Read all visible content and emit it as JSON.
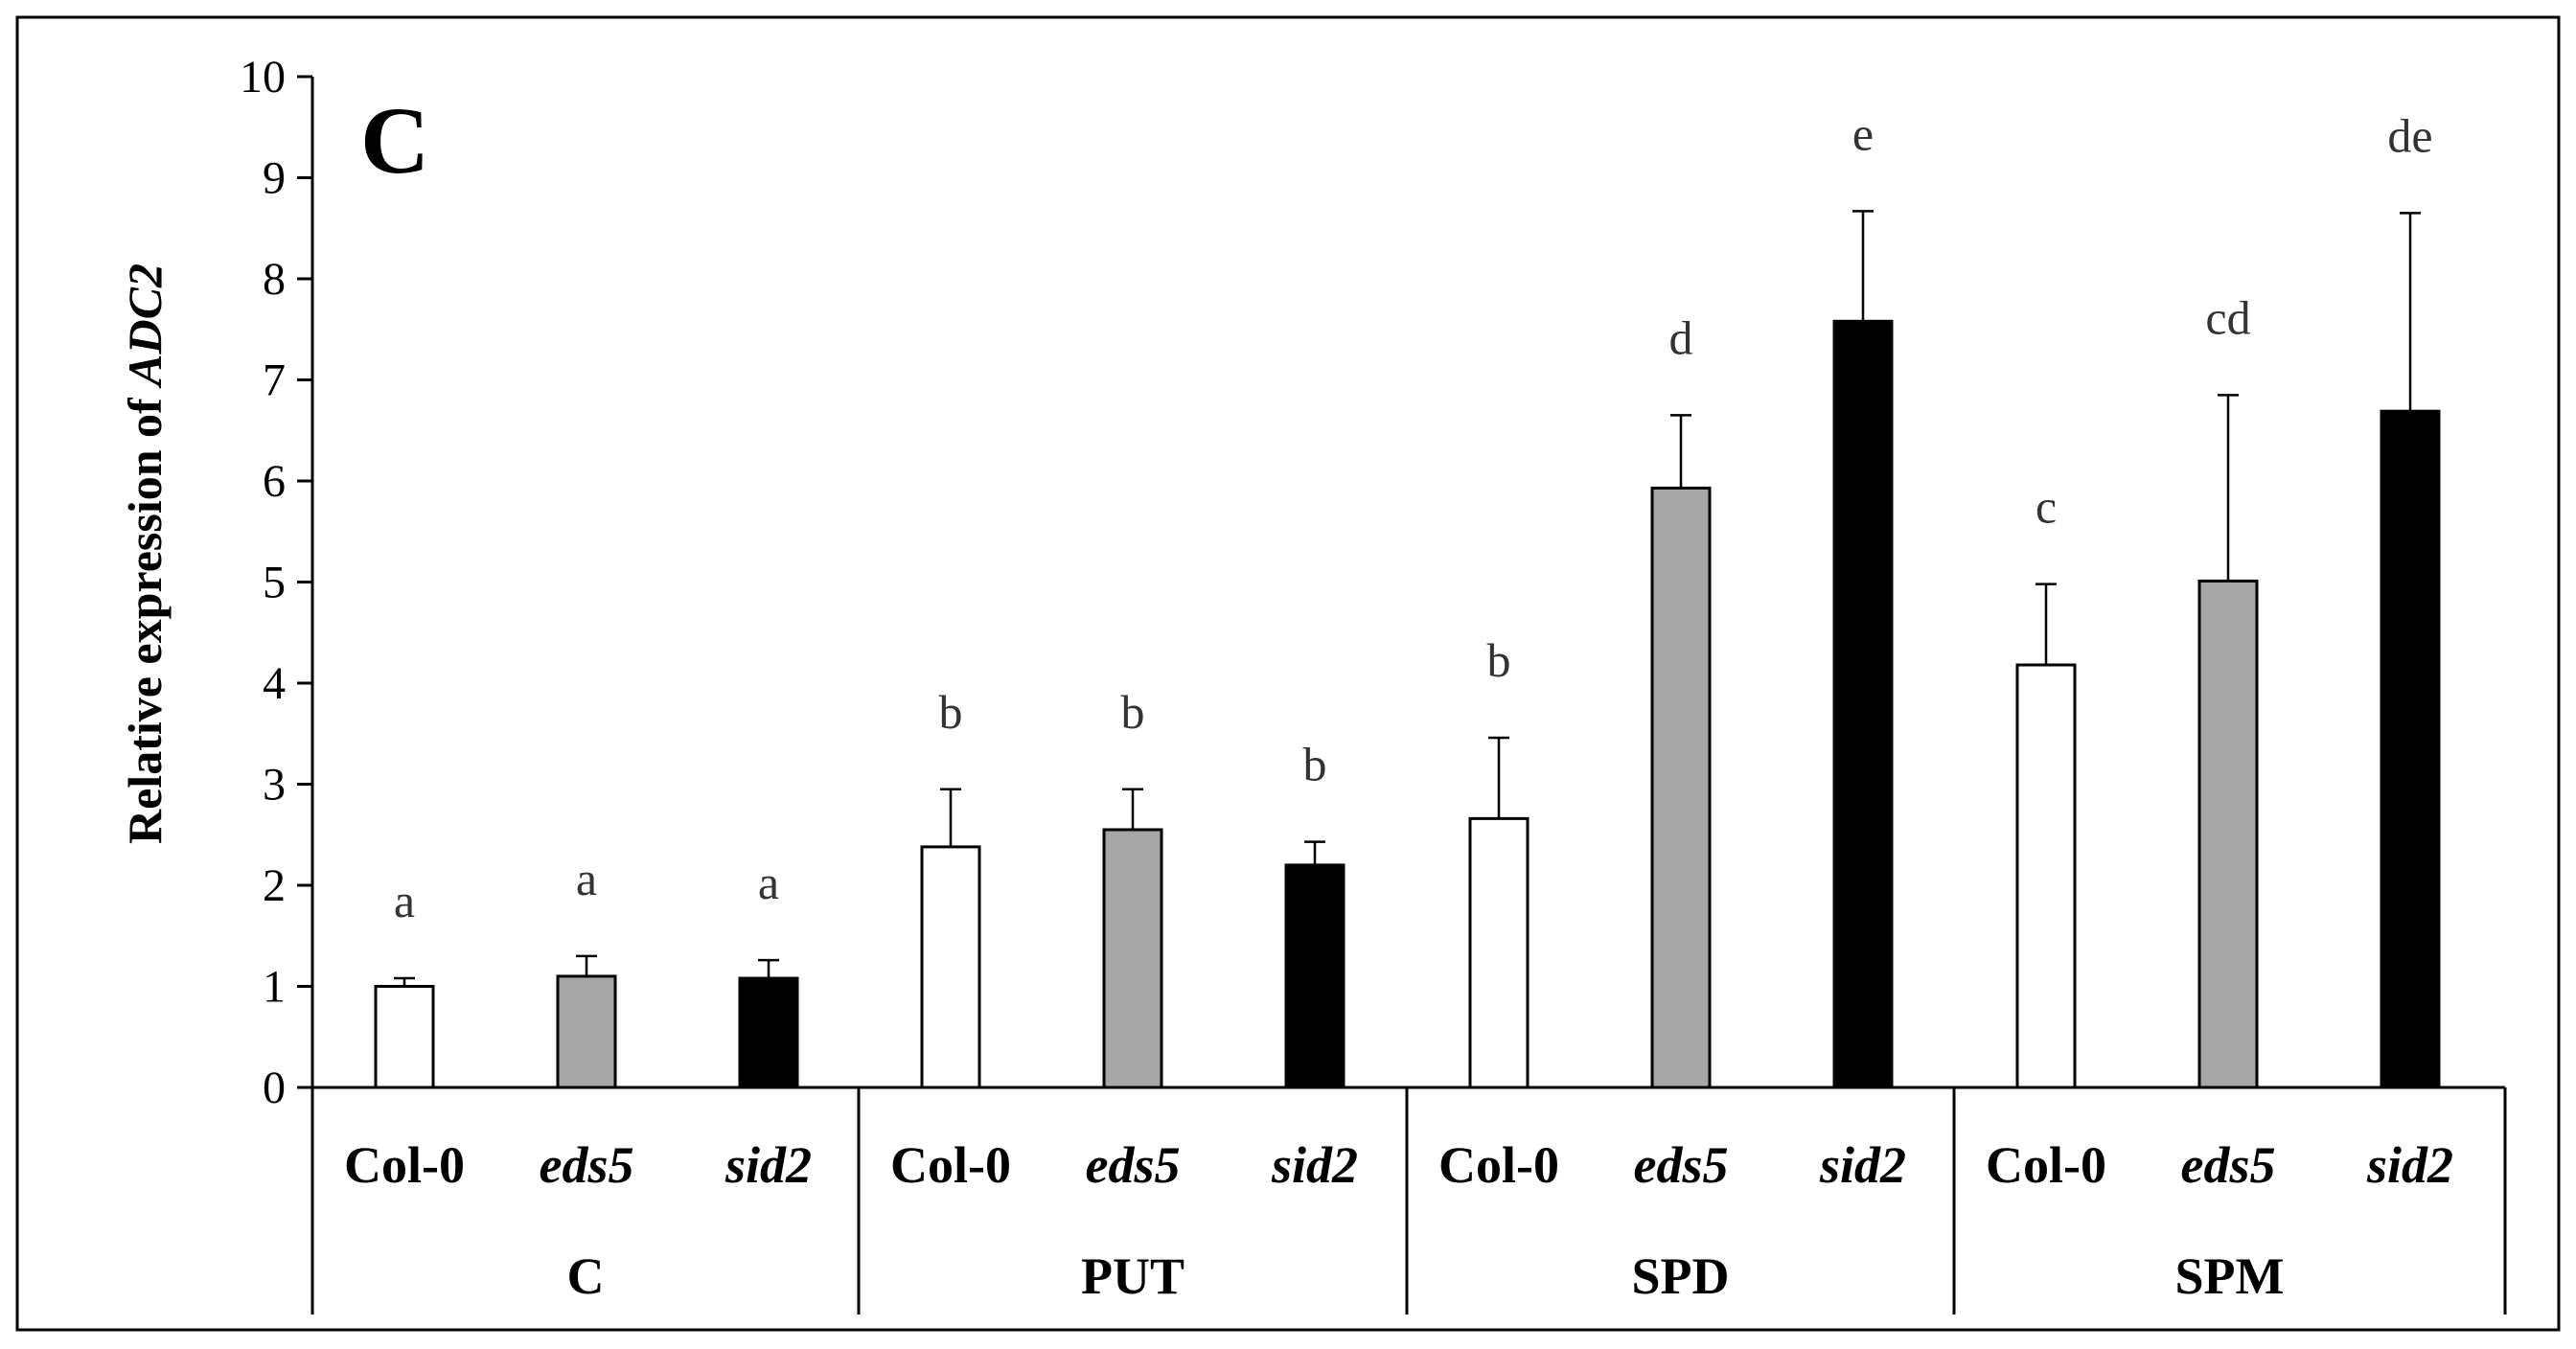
{
  "chart_data": {
    "type": "bar",
    "panel_label": "C",
    "ylabel_prefix": "Relative expression of ",
    "ylabel_gene": "ADC2",
    "ylim": [
      0,
      10
    ],
    "yticks": [
      "0",
      "1",
      "2",
      "3",
      "4",
      "5",
      "6",
      "7",
      "8",
      "9",
      "10"
    ],
    "grid": false,
    "group_labels": [
      "C",
      "PUT",
      "SPD",
      "SPM"
    ],
    "genotypes": [
      "Col-0",
      "eds5",
      "sid2"
    ],
    "genotype_italic": [
      false,
      true,
      true
    ],
    "series_colors": [
      "#ffffff",
      "#a6a6a6",
      "#000000"
    ],
    "bars": [
      {
        "group": "C",
        "genotype": "Col-0",
        "value": 1.0,
        "error": 0.08,
        "sig": "a"
      },
      {
        "group": "C",
        "genotype": "eds5",
        "value": 1.1,
        "error": 0.2,
        "sig": "a"
      },
      {
        "group": "C",
        "genotype": "sid2",
        "value": 1.08,
        "error": 0.18,
        "sig": "a"
      },
      {
        "group": "PUT",
        "genotype": "Col-0",
        "value": 2.38,
        "error": 0.57,
        "sig": "b"
      },
      {
        "group": "PUT",
        "genotype": "eds5",
        "value": 2.55,
        "error": 0.4,
        "sig": "b"
      },
      {
        "group": "PUT",
        "genotype": "sid2",
        "value": 2.2,
        "error": 0.23,
        "sig": "b"
      },
      {
        "group": "SPD",
        "genotype": "Col-0",
        "value": 2.66,
        "error": 0.8,
        "sig": "b"
      },
      {
        "group": "SPD",
        "genotype": "eds5",
        "value": 5.93,
        "error": 0.72,
        "sig": "d"
      },
      {
        "group": "SPD",
        "genotype": "sid2",
        "value": 7.58,
        "error": 1.09,
        "sig": "e"
      },
      {
        "group": "SPM",
        "genotype": "Col-0",
        "value": 4.18,
        "error": 0.8,
        "sig": "c"
      },
      {
        "group": "SPM",
        "genotype": "eds5",
        "value": 5.01,
        "error": 1.84,
        "sig": "cd"
      },
      {
        "group": "SPM",
        "genotype": "sid2",
        "value": 6.69,
        "error": 1.96,
        "sig": "de"
      }
    ]
  }
}
